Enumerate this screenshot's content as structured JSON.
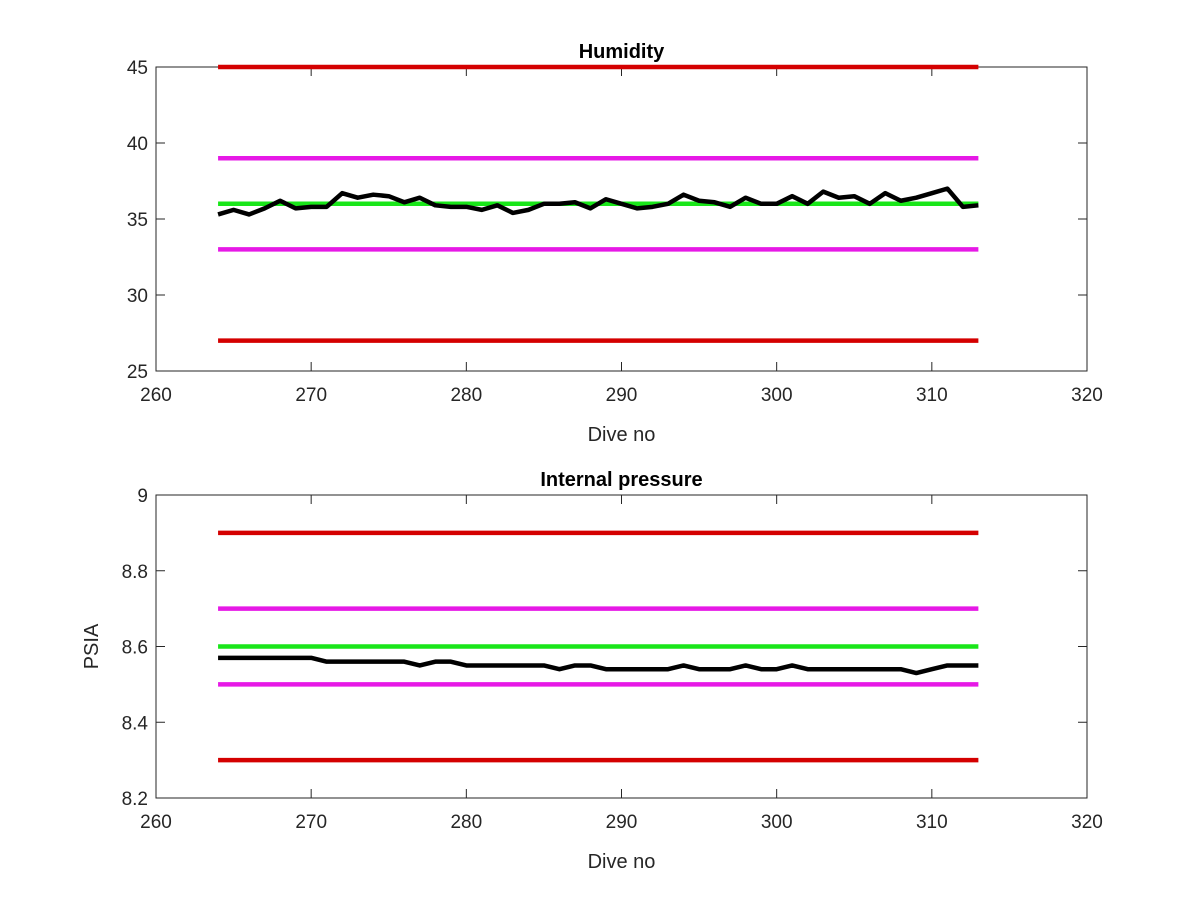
{
  "chart_data": [
    {
      "type": "line",
      "title": "Humidity",
      "xlabel": "Dive no",
      "ylabel": "",
      "xlim": [
        260,
        320
      ],
      "ylim": [
        25,
        45
      ],
      "xticks": [
        260,
        270,
        280,
        290,
        300,
        310,
        320
      ],
      "yticks": [
        25,
        30,
        35,
        40,
        45
      ],
      "grid": false,
      "reference_lines": [
        {
          "y": 45,
          "x": [
            264,
            313
          ],
          "color": "#d40000"
        },
        {
          "y": 39,
          "x": [
            264,
            313
          ],
          "color": "#e619e6"
        },
        {
          "y": 36,
          "x": [
            264,
            313
          ],
          "color": "#19e619"
        },
        {
          "y": 33,
          "x": [
            264,
            313
          ],
          "color": "#e619e6"
        },
        {
          "y": 27,
          "x": [
            264,
            313
          ],
          "color": "#d40000"
        }
      ],
      "series": [
        {
          "color": "#000000",
          "x": [
            264,
            265,
            266,
            267,
            268,
            269,
            270,
            271,
            272,
            273,
            274,
            275,
            276,
            277,
            278,
            279,
            280,
            281,
            282,
            283,
            284,
            285,
            286,
            287,
            288,
            289,
            290,
            291,
            292,
            293,
            294,
            295,
            296,
            297,
            298,
            299,
            300,
            301,
            302,
            303,
            304,
            305,
            306,
            307,
            308,
            309,
            310,
            311,
            312,
            313
          ],
          "y": [
            35.3,
            35.6,
            35.3,
            35.7,
            36.2,
            35.7,
            35.8,
            35.8,
            36.7,
            36.4,
            36.6,
            36.5,
            36.1,
            36.4,
            35.9,
            35.8,
            35.8,
            35.6,
            35.9,
            35.4,
            35.6,
            36.0,
            36.0,
            36.1,
            35.7,
            36.3,
            36.0,
            35.7,
            35.8,
            36.0,
            36.6,
            36.2,
            36.1,
            35.8,
            36.4,
            36.0,
            36.0,
            36.5,
            36.0,
            36.8,
            36.4,
            36.5,
            36.0,
            36.7,
            36.2,
            36.4,
            36.7,
            37.0,
            35.8,
            35.9
          ]
        }
      ]
    },
    {
      "type": "line",
      "title": "Internal pressure",
      "xlabel": "Dive no",
      "ylabel": "PSIA",
      "xlim": [
        260,
        320
      ],
      "ylim": [
        8.2,
        9
      ],
      "xticks": [
        260,
        270,
        280,
        290,
        300,
        310,
        320
      ],
      "yticks": [
        8.2,
        8.4,
        8.6,
        8.8,
        9
      ],
      "grid": false,
      "reference_lines": [
        {
          "y": 8.9,
          "x": [
            264,
            313
          ],
          "color": "#d40000"
        },
        {
          "y": 8.7,
          "x": [
            264,
            313
          ],
          "color": "#e619e6"
        },
        {
          "y": 8.6,
          "x": [
            264,
            313
          ],
          "color": "#19e619"
        },
        {
          "y": 8.5,
          "x": [
            264,
            313
          ],
          "color": "#e619e6"
        },
        {
          "y": 8.3,
          "x": [
            264,
            313
          ],
          "color": "#d40000"
        }
      ],
      "series": [
        {
          "color": "#000000",
          "x": [
            264,
            265,
            266,
            267,
            268,
            269,
            270,
            271,
            272,
            273,
            274,
            275,
            276,
            277,
            278,
            279,
            280,
            281,
            282,
            283,
            284,
            285,
            286,
            287,
            288,
            289,
            290,
            291,
            292,
            293,
            294,
            295,
            296,
            297,
            298,
            299,
            300,
            301,
            302,
            303,
            304,
            305,
            306,
            307,
            308,
            309,
            310,
            311,
            312,
            313
          ],
          "y": [
            8.57,
            8.57,
            8.57,
            8.57,
            8.57,
            8.57,
            8.57,
            8.56,
            8.56,
            8.56,
            8.56,
            8.56,
            8.56,
            8.55,
            8.56,
            8.56,
            8.55,
            8.55,
            8.55,
            8.55,
            8.55,
            8.55,
            8.54,
            8.55,
            8.55,
            8.54,
            8.54,
            8.54,
            8.54,
            8.54,
            8.55,
            8.54,
            8.54,
            8.54,
            8.55,
            8.54,
            8.54,
            8.55,
            8.54,
            8.54,
            8.54,
            8.54,
            8.54,
            8.54,
            8.54,
            8.53,
            8.54,
            8.55,
            8.55,
            8.55
          ]
        }
      ]
    }
  ]
}
